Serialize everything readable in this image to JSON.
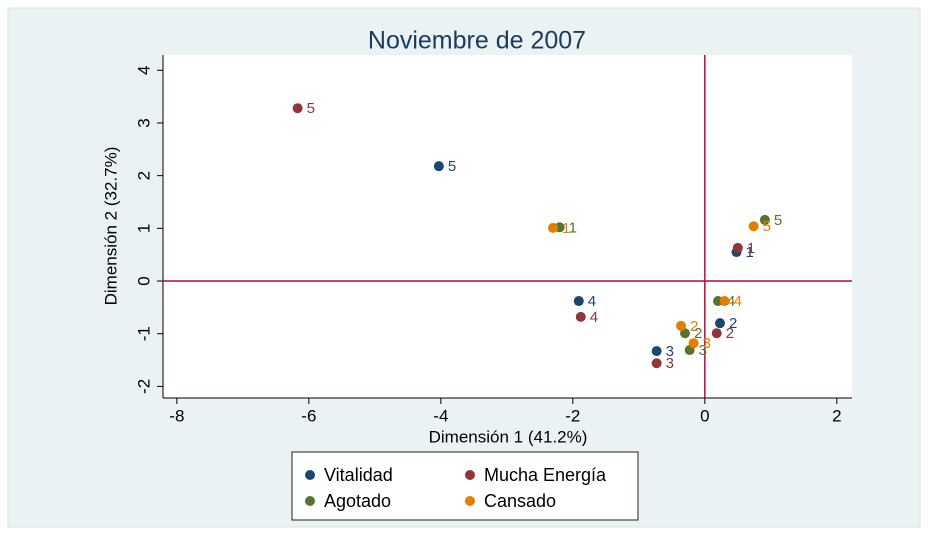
{
  "chart_data": {
    "type": "scatter",
    "title": "Noviembre de 2007",
    "x_label": "Dimensión 1 (41.2%)",
    "y_label": "Dimensión 2 (32.7%)",
    "xlim": [
      -8.21,
      2.23
    ],
    "ylim": [
      -2.22,
      4.29
    ],
    "xticks": [
      -8,
      -6,
      -4,
      -2,
      0,
      2
    ],
    "yticks": [
      -2,
      -1,
      0,
      1,
      2,
      3,
      4
    ],
    "reference_lines": {
      "x": 0,
      "y": 0,
      "color": "#c10534"
    },
    "legend_position": "bottom",
    "series": [
      {
        "name": "Vitalidad",
        "color": "#1a476f",
        "x": [
          0.48,
          0.23,
          -0.73,
          -1.91,
          -4.03
        ],
        "values": [
          0.55,
          -0.8,
          -1.33,
          -0.38,
          2.18
        ],
        "point_labels": [
          "1",
          "2",
          "3",
          "4",
          "5"
        ]
      },
      {
        "name": "Mucha Energía",
        "color": "#90353b",
        "x": [
          0.5,
          0.18,
          -0.73,
          -1.88,
          -6.17
        ],
        "values": [
          0.63,
          -0.99,
          -1.56,
          -0.68,
          3.28
        ],
        "point_labels": [
          "1",
          "2",
          "3",
          "4",
          "5"
        ]
      },
      {
        "name": "Agotado",
        "color": "#55752f",
        "x": [
          -2.2,
          -0.3,
          -0.23,
          0.2,
          0.91
        ],
        "values": [
          1.02,
          -0.99,
          -1.31,
          -0.38,
          1.16
        ],
        "point_labels": [
          "1",
          "2",
          "3",
          "4",
          "5"
        ]
      },
      {
        "name": "Cansado",
        "color": "#e37e00",
        "x": [
          -2.3,
          -0.36,
          -0.17,
          0.3,
          0.74
        ],
        "values": [
          1.01,
          -0.85,
          -1.18,
          -0.38,
          1.04
        ],
        "point_labels": [
          "1",
          "2",
          "3",
          "4",
          "5"
        ]
      }
    ]
  }
}
